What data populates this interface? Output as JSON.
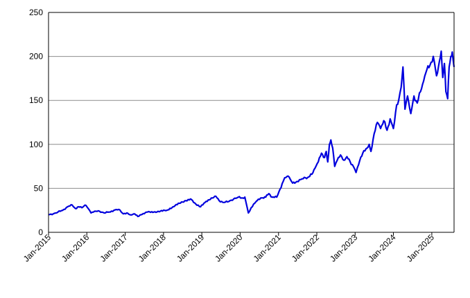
{
  "chart_data": {
    "type": "line",
    "title": "",
    "xlabel": "",
    "ylabel": "",
    "ylim": [
      0,
      250
    ],
    "xlim": [
      "2015-01-01",
      "2025-08-01"
    ],
    "y_ticks": [
      0,
      50,
      100,
      150,
      200,
      250
    ],
    "x_ticks": [
      {
        "date": "2015-01-01",
        "label": "Jan-2015"
      },
      {
        "date": "2016-01-01",
        "label": "Jan-2016"
      },
      {
        "date": "2017-01-01",
        "label": "Jan-2017"
      },
      {
        "date": "2018-01-01",
        "label": "Jan-2018"
      },
      {
        "date": "2019-01-01",
        "label": "Jan-2019"
      },
      {
        "date": "2020-01-01",
        "label": "Jan-2020"
      },
      {
        "date": "2021-01-01",
        "label": "Jan-2021"
      },
      {
        "date": "2022-01-01",
        "label": "Jan-2022"
      },
      {
        "date": "2023-01-01",
        "label": "Jan-2023"
      },
      {
        "date": "2024-01-01",
        "label": "Jan-2024"
      },
      {
        "date": "2025-01-01",
        "label": "Jan-2025"
      }
    ],
    "grid": "horizontal",
    "legend": "none",
    "series": [
      {
        "color": "#0000dd",
        "points": [
          [
            "2015-01-01",
            20
          ],
          [
            "2015-02-15",
            21
          ],
          [
            "2015-04-01",
            23
          ],
          [
            "2015-05-15",
            25
          ],
          [
            "2015-07-01",
            29
          ],
          [
            "2015-08-15",
            31
          ],
          [
            "2015-09-15",
            27
          ],
          [
            "2015-10-15",
            29
          ],
          [
            "2015-11-15",
            28
          ],
          [
            "2015-12-15",
            31
          ],
          [
            "2016-01-15",
            27
          ],
          [
            "2016-02-10",
            22
          ],
          [
            "2016-03-15",
            24
          ],
          [
            "2016-05-01",
            24
          ],
          [
            "2016-06-15",
            22
          ],
          [
            "2016-08-01",
            23
          ],
          [
            "2016-09-15",
            25
          ],
          [
            "2016-11-01",
            26
          ],
          [
            "2016-12-15",
            21
          ],
          [
            "2017-01-15",
            22
          ],
          [
            "2017-02-15",
            20
          ],
          [
            "2017-04-01",
            21
          ],
          [
            "2017-05-01",
            18
          ],
          [
            "2017-06-01",
            20
          ],
          [
            "2017-08-01",
            23
          ],
          [
            "2017-10-01",
            23
          ],
          [
            "2017-12-01",
            24
          ],
          [
            "2018-02-01",
            25
          ],
          [
            "2018-04-01",
            29
          ],
          [
            "2018-06-01",
            33
          ],
          [
            "2018-08-01",
            36
          ],
          [
            "2018-09-15",
            38
          ],
          [
            "2018-10-15",
            34
          ],
          [
            "2018-12-20",
            29
          ],
          [
            "2019-02-01",
            34
          ],
          [
            "2019-04-01",
            39
          ],
          [
            "2019-05-15",
            41
          ],
          [
            "2019-06-15",
            36
          ],
          [
            "2019-08-01",
            34
          ],
          [
            "2019-09-15",
            35
          ],
          [
            "2019-11-01",
            38
          ],
          [
            "2019-12-15",
            40
          ],
          [
            "2020-01-15",
            39
          ],
          [
            "2020-02-15",
            40
          ],
          [
            "2020-03-20",
            22
          ],
          [
            "2020-04-15",
            28
          ],
          [
            "2020-06-01",
            35
          ],
          [
            "2020-07-15",
            39
          ],
          [
            "2020-09-01",
            40
          ],
          [
            "2020-10-01",
            44
          ],
          [
            "2020-11-01",
            40
          ],
          [
            "2020-12-15",
            40
          ],
          [
            "2021-01-15",
            49
          ],
          [
            "2021-02-15",
            58
          ],
          [
            "2021-03-01",
            62
          ],
          [
            "2021-04-01",
            64
          ],
          [
            "2021-05-15",
            56
          ],
          [
            "2021-06-15",
            57
          ],
          [
            "2021-08-01",
            60
          ],
          [
            "2021-09-15",
            62
          ],
          [
            "2021-10-15",
            63
          ],
          [
            "2021-11-15",
            66
          ],
          [
            "2021-12-15",
            73
          ],
          [
            "2022-01-15",
            80
          ],
          [
            "2022-02-15",
            90
          ],
          [
            "2022-03-15",
            85
          ],
          [
            "2022-04-01",
            92
          ],
          [
            "2022-04-15",
            80
          ],
          [
            "2022-05-01",
            100
          ],
          [
            "2022-05-15",
            105
          ],
          [
            "2022-06-01",
            96
          ],
          [
            "2022-06-20",
            75
          ],
          [
            "2022-07-15",
            82
          ],
          [
            "2022-08-15",
            88
          ],
          [
            "2022-09-15",
            82
          ],
          [
            "2022-10-15",
            86
          ],
          [
            "2022-11-15",
            80
          ],
          [
            "2022-12-15",
            75
          ],
          [
            "2023-01-10",
            68
          ],
          [
            "2023-02-15",
            82
          ],
          [
            "2023-03-15",
            90
          ],
          [
            "2023-04-15",
            95
          ],
          [
            "2023-05-15",
            100
          ],
          [
            "2023-06-01",
            92
          ],
          [
            "2023-07-01",
            112
          ],
          [
            "2023-08-01",
            125
          ],
          [
            "2023-09-01",
            118
          ],
          [
            "2023-10-01",
            127
          ],
          [
            "2023-11-01",
            116
          ],
          [
            "2023-12-01",
            129
          ],
          [
            "2024-01-01",
            118
          ],
          [
            "2024-02-01",
            145
          ],
          [
            "2024-02-20",
            150
          ],
          [
            "2024-03-15",
            165
          ],
          [
            "2024-04-01",
            188
          ],
          [
            "2024-04-20",
            140
          ],
          [
            "2024-05-15",
            155
          ],
          [
            "2024-06-15",
            135
          ],
          [
            "2024-07-15",
            155
          ],
          [
            "2024-08-15",
            147
          ],
          [
            "2024-09-15",
            160
          ],
          [
            "2024-10-15",
            172
          ],
          [
            "2024-11-15",
            185
          ],
          [
            "2024-12-15",
            190
          ],
          [
            "2025-01-15",
            200
          ],
          [
            "2025-02-15",
            178
          ],
          [
            "2025-03-15",
            195
          ],
          [
            "2025-04-01",
            206
          ],
          [
            "2025-04-15",
            176
          ],
          [
            "2025-05-01",
            192
          ],
          [
            "2025-05-15",
            160
          ],
          [
            "2025-06-01",
            152
          ],
          [
            "2025-06-15",
            188
          ],
          [
            "2025-07-01",
            200
          ],
          [
            "2025-07-15",
            205
          ],
          [
            "2025-08-01",
            188
          ]
        ]
      }
    ]
  }
}
